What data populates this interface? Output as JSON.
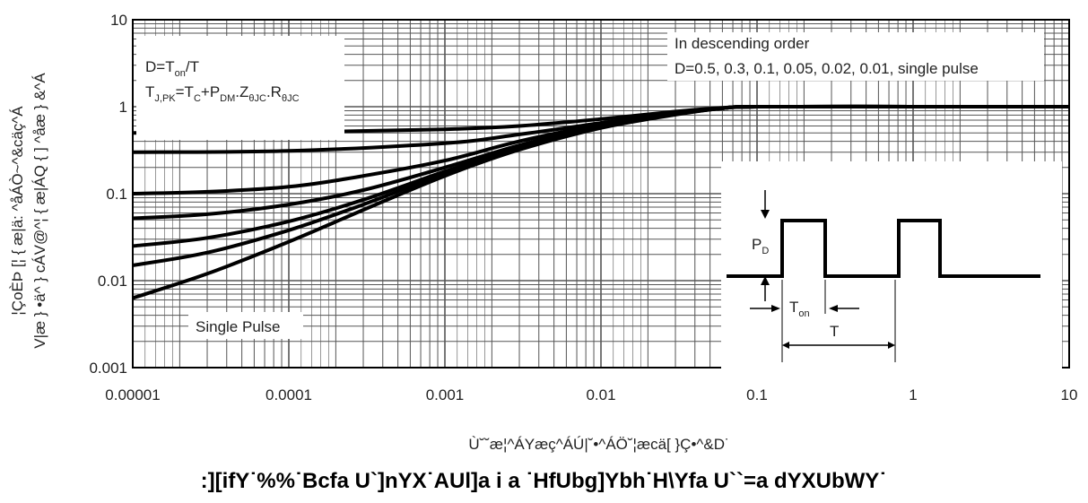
{
  "chart_data": {
    "type": "line",
    "x_scale": "log",
    "y_scale": "log",
    "xlim": [
      1e-05,
      10
    ],
    "ylim": [
      0.001,
      10
    ],
    "x_ticks": [
      "0.00001",
      "0.0001",
      "0.001",
      "0.01",
      "0.1",
      "1",
      "10"
    ],
    "y_ticks": [
      "10",
      "1",
      "0.1",
      "0.01",
      "0.001"
    ],
    "grid": true,
    "ylabel_line1": "¦ÇoÈÞ [¦ { æ|ä: ^åÁÒ~^&cäç^Á",
    "ylabel_line2": "V|æ } •ä^ } cÁV@^¦ { æ|ÁQ { ] ^åæ } &^Á",
    "xlabel": "Ù˘˘æ¦^ÁYæç^ÁÚ|˘•^ÁÖ˘¦æcä[ }Ç•^&D˙",
    "figure_caption": ":][ifY˙%%˙Bcfa U`]nYX˙AUl]a i a ˙HfUbg]Ybh˙H\\Yfa U``=a dYXUbWY˙",
    "annotations": {
      "duty_formula": "D=T",
      "duty_formula_sub": "on",
      "duty_formula_tail": "/T",
      "tj_t": "T",
      "tj_sub": "J,PK",
      "tj_eq": "=T",
      "tc_sub": "C",
      "tj_plus": "+P",
      "pdm_sub": "DM",
      "z_dot": ".Z",
      "z_sub": "θJC",
      "r_dot": ".R",
      "r_sub": "θJC",
      "legend_line1": "In descending order",
      "legend_line2": "D=0.5, 0.3, 0.1, 0.05, 0.02, 0.01, single pulse",
      "single_pulse_label": "Single Pulse",
      "inset_pd": "P",
      "inset_pd_sub": "D",
      "inset_ton": "T",
      "inset_ton_sub": "on",
      "inset_t": "T"
    },
    "series": [
      {
        "duty": 0.5,
        "x": [
          1e-05,
          0.0001,
          0.001,
          0.003,
          0.01,
          0.03,
          0.06,
          0.1,
          1,
          10
        ],
        "y": [
          0.5,
          0.51,
          0.55,
          0.6,
          0.72,
          0.88,
          0.97,
          1.0,
          1.0,
          1.0
        ]
      },
      {
        "duty": 0.3,
        "x": [
          1e-05,
          0.0001,
          0.001,
          0.003,
          0.01,
          0.03,
          0.06,
          0.1,
          1,
          10
        ],
        "y": [
          0.3,
          0.31,
          0.38,
          0.48,
          0.65,
          0.85,
          0.96,
          1.0,
          1.0,
          1.0
        ]
      },
      {
        "duty": 0.1,
        "x": [
          1e-05,
          3e-05,
          0.0001,
          0.0003,
          0.001,
          0.003,
          0.01,
          0.03,
          0.06,
          0.1,
          1,
          10
        ],
        "y": [
          0.1,
          0.105,
          0.12,
          0.16,
          0.24,
          0.4,
          0.62,
          0.84,
          0.96,
          1.0,
          1.0,
          1.0
        ]
      },
      {
        "duty": 0.05,
        "x": [
          1e-05,
          3e-05,
          0.0001,
          0.0003,
          0.001,
          0.003,
          0.01,
          0.03,
          0.06,
          0.1,
          1,
          10
        ],
        "y": [
          0.052,
          0.058,
          0.075,
          0.11,
          0.2,
          0.36,
          0.6,
          0.83,
          0.96,
          1.0,
          1.0,
          1.0
        ]
      },
      {
        "duty": 0.02,
        "x": [
          1e-05,
          3e-05,
          0.0001,
          0.0003,
          0.001,
          0.003,
          0.01,
          0.03,
          0.06,
          0.1,
          1,
          10
        ],
        "y": [
          0.025,
          0.031,
          0.048,
          0.085,
          0.18,
          0.34,
          0.59,
          0.82,
          0.96,
          1.0,
          1.0,
          1.0
        ]
      },
      {
        "duty": 0.01,
        "x": [
          1e-05,
          3e-05,
          0.0001,
          0.0003,
          0.001,
          0.003,
          0.01,
          0.03,
          0.06,
          0.1,
          1,
          10
        ],
        "y": [
          0.015,
          0.021,
          0.038,
          0.075,
          0.17,
          0.33,
          0.58,
          0.82,
          0.96,
          1.0,
          1.0,
          1.0
        ]
      },
      {
        "duty": 0,
        "x": [
          1e-05,
          3e-05,
          0.0001,
          0.0003,
          0.001,
          0.003,
          0.01,
          0.03,
          0.06,
          0.1,
          1,
          10
        ],
        "y": [
          0.0063,
          0.012,
          0.028,
          0.065,
          0.16,
          0.32,
          0.57,
          0.81,
          0.96,
          1.0,
          1.0,
          1.0
        ]
      }
    ]
  }
}
